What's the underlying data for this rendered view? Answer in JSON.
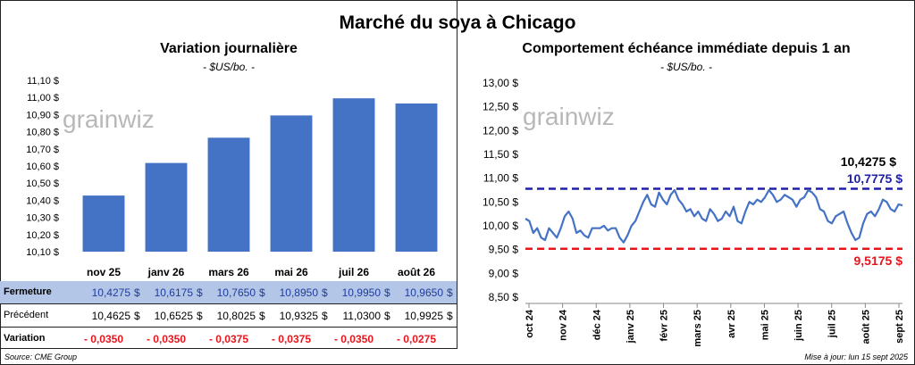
{
  "main_title": "Marché du soya à Chicago",
  "left": {
    "title": "Variation journalière",
    "subtitle": "- $US/bo. -",
    "watermark_text": "grainwiz",
    "row_labels": {
      "close": "Fermeture",
      "previous": "Précédent",
      "change": "Variation"
    }
  },
  "right": {
    "title": "Comportement échéance immédiate depuis 1 an",
    "subtitle": "- $US/bo. -",
    "watermark_text": "grainwiz"
  },
  "footer": {
    "source": "Source: CME Group",
    "updated": "Mise à jour: lun 15 sept 2025"
  },
  "colors": {
    "bar": "#4472C4",
    "line": "#4472C4",
    "high": "#1F1FA8",
    "low": "#E8141C",
    "table_header_bg": "#B4C6E7",
    "table_header_text": "#1F3C9A",
    "negative": "#E8141C"
  },
  "chart_data": [
    {
      "type": "bar",
      "categories": [
        "nov 25",
        "janv 26",
        "mars 26",
        "mai 26",
        "juil 26",
        "août 26"
      ],
      "values": [
        10.4275,
        10.6175,
        10.765,
        10.895,
        10.995,
        10.965
      ],
      "ylim": [
        10.1,
        11.1
      ],
      "yticks": [
        "10,10 $",
        "10,20 $",
        "10,30 $",
        "10,40 $",
        "10,50 $",
        "10,60 $",
        "10,70 $",
        "10,80 $",
        "10,90 $",
        "11,00 $",
        "11,10 $"
      ],
      "table": {
        "close": [
          "10,4275",
          "10,6175",
          "10,7650",
          "10,8950",
          "10,9950",
          "10,9650"
        ],
        "previous": [
          "10,4625",
          "10,6525",
          "10,8025",
          "10,9325",
          "11,0300",
          "10,9925"
        ],
        "change": [
          "- 0,0350",
          "- 0,0350",
          "- 0,0375",
          "- 0,0375",
          "- 0,0350",
          "- 0,0275"
        ],
        "currency": "$"
      }
    },
    {
      "type": "line",
      "ylim": [
        8.5,
        13.0
      ],
      "yticks": [
        "8,50 $",
        "9,00 $",
        "9,50 $",
        "10,00 $",
        "10,50 $",
        "11,00 $",
        "11,50 $",
        "12,00 $",
        "12,50 $",
        "13,00 $"
      ],
      "xticks": [
        "oct 24",
        "nov 24",
        "déc 24",
        "janv 25",
        "févr 25",
        "mars 25",
        "avr 25",
        "mai 25",
        "juin 25",
        "juil 25",
        "août 25",
        "sept 25"
      ],
      "series": [
        {
          "values": [
            10.15,
            10.1,
            9.85,
            9.95,
            9.75,
            9.7,
            9.95,
            9.85,
            9.75,
            9.95,
            10.2,
            10.3,
            10.15,
            9.85,
            9.9,
            9.8,
            9.75,
            9.95,
            9.95,
            9.95,
            10.0,
            9.9,
            9.95,
            9.95,
            9.75,
            9.65,
            9.8,
            10.0,
            10.1,
            10.3,
            10.5,
            10.65,
            10.45,
            10.4,
            10.7,
            10.55,
            10.45,
            10.65,
            10.75,
            10.55,
            10.45,
            10.3,
            10.35,
            10.2,
            10.3,
            10.15,
            10.1,
            10.35,
            10.25,
            10.1,
            10.15,
            10.3,
            10.2,
            10.4,
            10.1,
            10.05,
            10.3,
            10.5,
            10.45,
            10.55,
            10.5,
            10.6,
            10.75,
            10.65,
            10.5,
            10.55,
            10.65,
            10.6,
            10.55,
            10.4,
            10.55,
            10.6,
            10.75,
            10.7,
            10.6,
            10.35,
            10.3,
            10.1,
            10.05,
            10.2,
            10.25,
            10.3,
            10.05,
            9.85,
            9.7,
            9.75,
            10.05,
            10.25,
            10.3,
            10.2,
            10.35,
            10.55,
            10.5,
            10.35,
            10.3,
            10.45,
            10.4275
          ]
        }
      ],
      "hlines": [
        {
          "value": 10.7775,
          "label": "10,7775 $"
        },
        {
          "value": 9.5175,
          "label": "9,5175 $"
        }
      ],
      "last_label": "10,4275 $"
    }
  ]
}
